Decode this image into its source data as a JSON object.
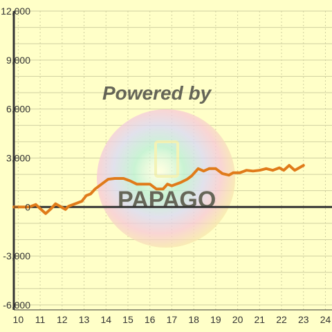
{
  "colors": {
    "background": "#ffffc8",
    "grid": "#cfcfa0",
    "axis": "#333333",
    "line": "#e07b1a"
  },
  "watermark": {
    "caption": "Powered by",
    "logo_text": "PAPAGO"
  },
  "chart_data": {
    "type": "line",
    "title": "",
    "xlabel": "",
    "ylabel": "",
    "xlim": [
      9.8,
      24.3
    ],
    "ylim": [
      -6300,
      12000
    ],
    "x_ticks": [
      10,
      11,
      12,
      13,
      14,
      15,
      16,
      17,
      18,
      19,
      20,
      21,
      22,
      23,
      24
    ],
    "y_ticks": [
      -6000,
      -3000,
      0,
      3000,
      6000,
      9000,
      12000
    ],
    "y_tick_labels": [
      "-6,000",
      "-3,000",
      "0",
      "3,000",
      "6,000",
      "9,000",
      "12,000"
    ],
    "grid": true,
    "series": [
      {
        "x": [
          9.8,
          10.5,
          10.8,
          11.0,
          11.25,
          11.5,
          11.7,
          11.9,
          12.15,
          12.3,
          12.5,
          12.9,
          13.1,
          13.3,
          13.5,
          13.8,
          14.1,
          14.4,
          14.8,
          15.1,
          15.4,
          15.7,
          16.0,
          16.3,
          16.6,
          16.8,
          17.0,
          17.4,
          17.7,
          17.9,
          18.2,
          18.45,
          18.7,
          19.0,
          19.3,
          19.6,
          19.8,
          20.1,
          20.4,
          20.7,
          21.0,
          21.3,
          21.6,
          21.9,
          22.1,
          22.35,
          22.6,
          23.0
        ],
        "y": [
          0,
          0,
          150,
          -100,
          -400,
          -100,
          200,
          50,
          -150,
          50,
          150,
          350,
          700,
          800,
          1100,
          1400,
          1700,
          1750,
          1750,
          1600,
          1400,
          1400,
          1400,
          1100,
          1100,
          1400,
          1300,
          1500,
          1700,
          1900,
          2350,
          2200,
          2350,
          2350,
          2050,
          1950,
          2100,
          2100,
          2250,
          2200,
          2250,
          2350,
          2250,
          2400,
          2250,
          2550,
          2250,
          2550
        ]
      }
    ]
  }
}
